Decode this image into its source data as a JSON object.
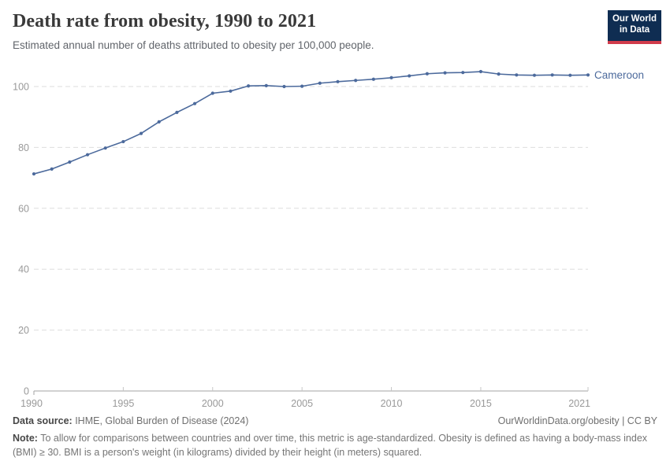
{
  "header": {
    "title": "Death rate from obesity, 1990 to 2021",
    "subtitle": "Estimated annual number of deaths attributed to obesity per 100,000 people.",
    "logo": {
      "line1": "Our World",
      "line2": "in Data"
    }
  },
  "chart_data": {
    "type": "line",
    "title": "Death rate from obesity, 1990 to 2021",
    "x": [
      1990,
      1991,
      1992,
      1993,
      1994,
      1995,
      1996,
      1997,
      1998,
      1999,
      2000,
      2001,
      2002,
      2003,
      2004,
      2005,
      2006,
      2007,
      2008,
      2009,
      2010,
      2011,
      2012,
      2013,
      2014,
      2015,
      2016,
      2017,
      2018,
      2019,
      2020,
      2021
    ],
    "series": [
      {
        "name": "Cameroon",
        "color": "#4C6A9C",
        "values": [
          71.3,
          72.9,
          75.2,
          77.6,
          79.8,
          81.9,
          84.6,
          88.4,
          91.5,
          94.4,
          97.8,
          98.5,
          100.2,
          100.3,
          100.0,
          100.1,
          101.1,
          101.6,
          102.0,
          102.4,
          102.9,
          103.5,
          104.2,
          104.5,
          104.6,
          104.9,
          104.1,
          103.8,
          103.7,
          103.8,
          103.7,
          103.8
        ]
      }
    ],
    "xlabel": "",
    "ylabel": "",
    "xlim": [
      1990,
      2021
    ],
    "ylim": [
      0,
      108
    ],
    "yticks": [
      0,
      20,
      40,
      60,
      80,
      100
    ],
    "xticks": [
      1990,
      1995,
      2000,
      2005,
      2010,
      2015,
      2021
    ],
    "grid": "horizontal-dashed",
    "legend": "line-end-label"
  },
  "colors": {
    "line": "#4C6A9C",
    "grid": "#dedede",
    "axis": "#a3a3a3",
    "tick_label": "#999999",
    "logo_bg": "#0f2d52",
    "logo_red": "#d13b4b"
  },
  "footer": {
    "datasource_label": "Data source:",
    "datasource_text": " IHME, Global Burden of Disease (2024)",
    "link": "OurWorldinData.org/obesity | CC BY",
    "note_label": "Note:",
    "note_text": " To allow for comparisons between countries and over time, this metric is age-standardized. Obesity is defined as having a body-mass index (BMI) ≥ 30. BMI is a person's weight (in kilograms) divided by their height (in meters) squared."
  }
}
